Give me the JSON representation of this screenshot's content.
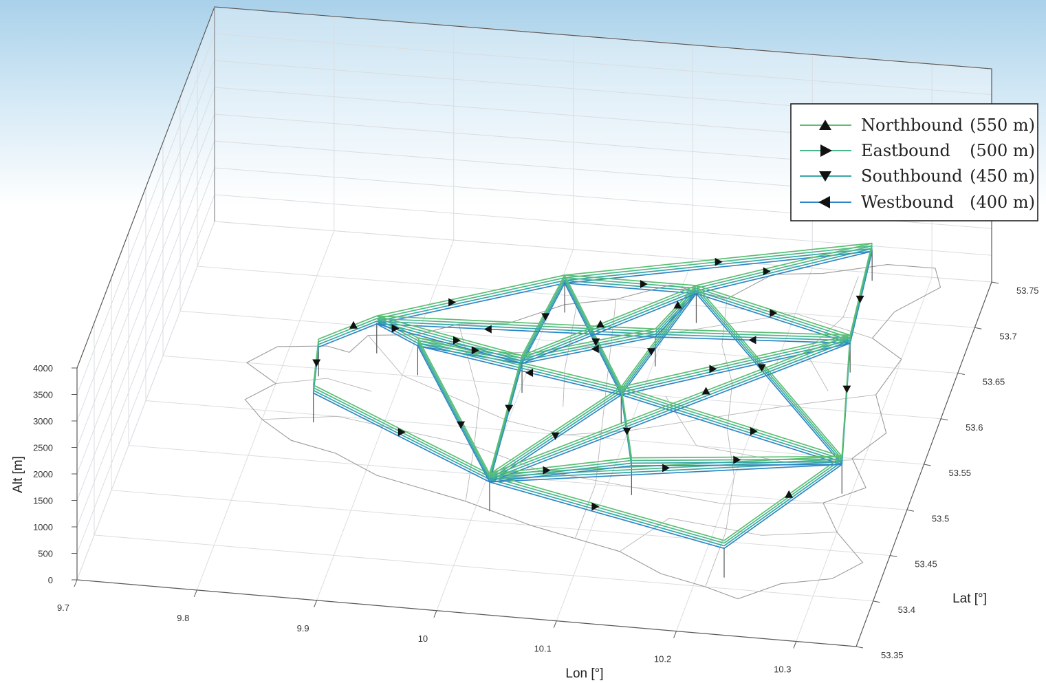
{
  "chart_data": {
    "type": "line",
    "title": "",
    "xlabel": "Lon [°]",
    "ylabel": "Lat [°]",
    "zlabel": "Alt [m]",
    "xlim": [
      9.7,
      10.35
    ],
    "ylim": [
      53.35,
      53.75
    ],
    "zlim": [
      0,
      4000
    ],
    "x_ticks": [
      "9.7",
      "9.8",
      "9.9",
      "10",
      "10.1",
      "10.2",
      "10.3"
    ],
    "y_ticks": [
      "53.35",
      "53.4",
      "53.45",
      "53.5",
      "53.55",
      "53.6",
      "53.65",
      "53.7",
      "53.75"
    ],
    "z_ticks": [
      "0",
      "500",
      "1000",
      "1500",
      "2000",
      "2500",
      "3000",
      "3500",
      "4000"
    ],
    "grid": true,
    "view": "3d-perspective",
    "legend_position": "top-right",
    "series": [
      {
        "name": "Northbound",
        "altitude_label": "(550 m)",
        "altitude": 550,
        "marker": "triangle-up",
        "color": "#5cbf73"
      },
      {
        "name": "Eastbound",
        "altitude_label": "(500 m)",
        "altitude": 500,
        "marker": "triangle-right",
        "color": "#4cb88b"
      },
      {
        "name": "Southbound",
        "altitude_label": "(450 m)",
        "altitude": 450,
        "marker": "triangle-down",
        "color": "#36a7a6"
      },
      {
        "name": "Westbound",
        "altitude_label": "(400 m)",
        "altitude": 400,
        "marker": "triangle-left",
        "color": "#2f86c4"
      }
    ],
    "nodes": [
      {
        "lon": 9.84,
        "lat": 53.55
      },
      {
        "lon": 9.83,
        "lat": 53.6
      },
      {
        "lon": 9.87,
        "lat": 53.63
      },
      {
        "lon": 9.91,
        "lat": 53.61
      },
      {
        "lon": 10.01,
        "lat": 53.69
      },
      {
        "lon": 10.0,
        "lat": 53.6
      },
      {
        "lon": 10.01,
        "lat": 53.47
      },
      {
        "lon": 10.09,
        "lat": 53.575
      },
      {
        "lon": 10.12,
        "lat": 53.69
      },
      {
        "lon": 10.1,
        "lat": 53.64
      },
      {
        "lon": 10.12,
        "lat": 53.5
      },
      {
        "lon": 10.25,
        "lat": 53.75
      },
      {
        "lon": 10.26,
        "lat": 53.65
      },
      {
        "lon": 10.29,
        "lat": 53.52
      },
      {
        "lon": 10.22,
        "lat": 53.42
      }
    ],
    "routes": [
      [
        1,
        0
      ],
      [
        0,
        6
      ],
      [
        1,
        2
      ],
      [
        2,
        3
      ],
      [
        3,
        5
      ],
      [
        2,
        4
      ],
      [
        4,
        11
      ],
      [
        4,
        8
      ],
      [
        4,
        5
      ],
      [
        4,
        7
      ],
      [
        8,
        11
      ],
      [
        8,
        12
      ],
      [
        8,
        7
      ],
      [
        8,
        13
      ],
      [
        11,
        12
      ],
      [
        12,
        13
      ],
      [
        12,
        9
      ],
      [
        9,
        2
      ],
      [
        9,
        5
      ],
      [
        9,
        8
      ],
      [
        7,
        12
      ],
      [
        7,
        6
      ],
      [
        7,
        13
      ],
      [
        7,
        3
      ],
      [
        7,
        10
      ],
      [
        5,
        6
      ],
      [
        6,
        13
      ],
      [
        6,
        12
      ],
      [
        6,
        14
      ],
      [
        14,
        13
      ],
      [
        6,
        10
      ],
      [
        10,
        13
      ],
      [
        3,
        6
      ],
      [
        5,
        8
      ],
      [
        2,
        5
      ]
    ]
  }
}
